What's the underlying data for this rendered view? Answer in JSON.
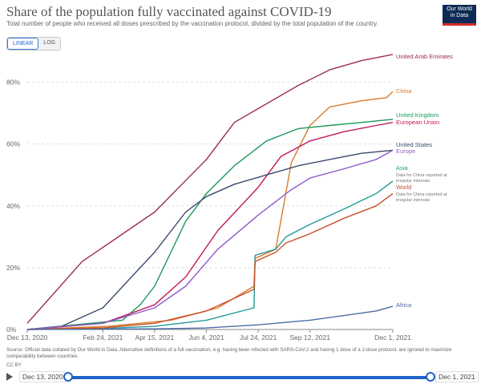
{
  "header": {
    "title": "Share of the population fully vaccinated against COVID-19",
    "subtitle": "Total number of people who received all doses prescribed by the vaccination protocol, divided by the total population of the country.",
    "logo_line1": "Our World",
    "logo_line2": "in Data"
  },
  "controls": {
    "linear_label": "LINEAR",
    "log_label": "LOG",
    "selected": "LINEAR"
  },
  "footer": {
    "source": "Source: Official data collated by Our World in Data. Alternative definitions of a full vaccination, e.g. having been infected with SARS-CoV-2 and having 1 dose of a 2-dose protocol, are ignored to maximize comparability between countries.",
    "license": "CC BY"
  },
  "timeline": {
    "start_label": "Dec 13, 2020",
    "end_label": "Dec 1, 2021"
  },
  "chart_data": {
    "type": "line",
    "title": "Share of the population fully vaccinated against COVID-19",
    "x_ticks": [
      "Dec 13, 2020",
      "Feb 24, 2021",
      "Apr 15, 2021",
      "Jun 4, 2021",
      "Jul 24, 2021",
      "Sep 12, 2021",
      "Dec 1, 2021"
    ],
    "y_ticks": [
      "0%",
      "20%",
      "40%",
      "60%",
      "80%"
    ],
    "xlim": [
      "2020-12-13",
      "2021-12-01"
    ],
    "ylim": [
      0,
      90
    ],
    "grid": "horizontal dashed",
    "legend": "right labels",
    "series": [
      {
        "name": "United Arab Emirates",
        "color": "#9b2e4b",
        "points": [
          [
            "2020-12-13",
            2
          ],
          [
            "2021-02-04",
            22
          ],
          [
            "2021-04-15",
            38
          ],
          [
            "2021-06-04",
            55
          ],
          [
            "2021-07-01",
            67
          ],
          [
            "2021-08-01",
            73
          ],
          [
            "2021-09-01",
            79
          ],
          [
            "2021-10-01",
            84
          ],
          [
            "2021-11-01",
            87
          ],
          [
            "2021-12-01",
            89
          ]
        ]
      },
      {
        "name": "China",
        "color": "#d87b2a",
        "points": [
          [
            "2020-12-13",
            0
          ],
          [
            "2021-03-01",
            1
          ],
          [
            "2021-05-01",
            3
          ],
          [
            "2021-06-15",
            7
          ],
          [
            "2021-07-20",
            14
          ],
          [
            "2021-07-21",
            23
          ],
          [
            "2021-08-10",
            26
          ],
          [
            "2021-08-25",
            54
          ],
          [
            "2021-09-12",
            66
          ],
          [
            "2021-10-01",
            72
          ],
          [
            "2021-11-01",
            74
          ],
          [
            "2021-11-25",
            75
          ],
          [
            "2021-12-01",
            77
          ]
        ]
      },
      {
        "name": "United Kingdom",
        "color": "#1a9a5c",
        "points": [
          [
            "2020-12-13",
            0
          ],
          [
            "2021-03-15",
            3
          ],
          [
            "2021-04-01",
            8
          ],
          [
            "2021-04-15",
            14
          ],
          [
            "2021-05-15",
            35
          ],
          [
            "2021-06-04",
            44
          ],
          [
            "2021-07-01",
            53
          ],
          [
            "2021-08-01",
            61
          ],
          [
            "2021-09-01",
            65
          ],
          [
            "2021-10-01",
            66
          ],
          [
            "2021-11-01",
            67
          ],
          [
            "2021-12-01",
            68
          ]
        ]
      },
      {
        "name": "European Union",
        "color": "#c2185b",
        "points": [
          [
            "2020-12-13",
            0
          ],
          [
            "2021-02-24",
            2
          ],
          [
            "2021-04-15",
            8
          ],
          [
            "2021-05-15",
            17
          ],
          [
            "2021-06-15",
            32
          ],
          [
            "2021-07-24",
            46
          ],
          [
            "2021-08-15",
            56
          ],
          [
            "2021-09-12",
            61
          ],
          [
            "2021-10-15",
            64
          ],
          [
            "2021-11-15",
            66
          ],
          [
            "2021-12-01",
            67
          ]
        ]
      },
      {
        "name": "United States",
        "color": "#3b4b6e",
        "points": [
          [
            "2020-12-13",
            0
          ],
          [
            "2021-01-15",
            1
          ],
          [
            "2021-02-24",
            7
          ],
          [
            "2021-04-01",
            20
          ],
          [
            "2021-04-15",
            25
          ],
          [
            "2021-05-15",
            38
          ],
          [
            "2021-06-04",
            43
          ],
          [
            "2021-07-01",
            47
          ],
          [
            "2021-08-01",
            50
          ],
          [
            "2021-09-01",
            53
          ],
          [
            "2021-10-01",
            55
          ],
          [
            "2021-11-01",
            57
          ],
          [
            "2021-12-01",
            58
          ]
        ]
      },
      {
        "name": "Europe",
        "color": "#8d5bc9",
        "points": [
          [
            "2020-12-13",
            0
          ],
          [
            "2021-02-24",
            2
          ],
          [
            "2021-04-15",
            7
          ],
          [
            "2021-05-15",
            14
          ],
          [
            "2021-06-15",
            26
          ],
          [
            "2021-07-24",
            37
          ],
          [
            "2021-08-24",
            45
          ],
          [
            "2021-09-12",
            49
          ],
          [
            "2021-10-15",
            52
          ],
          [
            "2021-11-15",
            55
          ],
          [
            "2021-12-01",
            58
          ]
        ]
      },
      {
        "name": "Asia",
        "note": "Data for China reported at irregular intervals",
        "color": "#219a96",
        "points": [
          [
            "2020-12-13",
            0
          ],
          [
            "2021-02-24",
            0.3
          ],
          [
            "2021-04-15",
            1
          ],
          [
            "2021-06-04",
            3
          ],
          [
            "2021-07-20",
            7
          ],
          [
            "2021-07-21",
            24
          ],
          [
            "2021-08-10",
            26
          ],
          [
            "2021-08-20",
            30
          ],
          [
            "2021-09-12",
            34
          ],
          [
            "2021-10-15",
            39
          ],
          [
            "2021-11-15",
            44
          ],
          [
            "2021-12-01",
            48
          ]
        ]
      },
      {
        "name": "World",
        "note": "Data for China reported at irregular intervals",
        "color": "#c6502b",
        "points": [
          [
            "2020-12-13",
            0
          ],
          [
            "2021-02-24",
            0.5
          ],
          [
            "2021-04-15",
            2
          ],
          [
            "2021-06-04",
            6
          ],
          [
            "2021-07-20",
            13
          ],
          [
            "2021-07-21",
            22
          ],
          [
            "2021-08-10",
            25
          ],
          [
            "2021-08-20",
            28
          ],
          [
            "2021-09-12",
            31
          ],
          [
            "2021-10-15",
            36
          ],
          [
            "2021-11-15",
            40
          ],
          [
            "2021-12-01",
            44
          ]
        ]
      },
      {
        "name": "Africa",
        "color": "#4b6da7",
        "points": [
          [
            "2020-12-13",
            0
          ],
          [
            "2021-04-15",
            0.2
          ],
          [
            "2021-06-04",
            0.5
          ],
          [
            "2021-07-24",
            1.5
          ],
          [
            "2021-09-12",
            3
          ],
          [
            "2021-10-15",
            4.5
          ],
          [
            "2021-11-15",
            6
          ],
          [
            "2021-12-01",
            7.5
          ]
        ]
      }
    ]
  }
}
